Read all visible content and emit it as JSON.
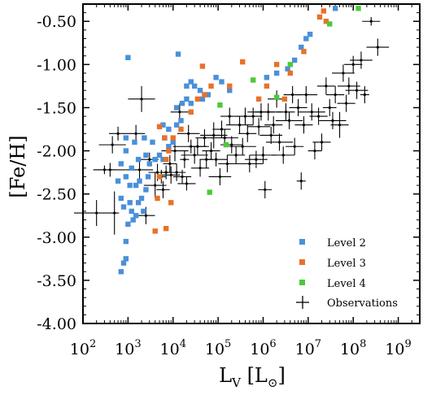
{
  "chart_data": {
    "type": "scatter",
    "title": "",
    "xlabel": "L_V [L_⊙]",
    "ylabel": "[Fe/H]",
    "xscale": "log",
    "xlim": [
      100,
      3000000000
    ],
    "ylim": [
      -4.0,
      -0.3
    ],
    "x_tick_labels": [
      "10^2",
      "10^3",
      "10^4",
      "10^5",
      "10^6",
      "10^7",
      "10^8",
      "10^9"
    ],
    "y_tick_labels": [
      "-0.50",
      "-1.00",
      "-1.50",
      "-2.00",
      "-2.50",
      "-3.00",
      "-3.50",
      "-4.00"
    ],
    "grid": false,
    "legend_position": "bottom-right",
    "colors": {
      "level2": "#4a90d9",
      "level3": "#e8712a",
      "level4": "#4cc93a",
      "observations": "#000000"
    },
    "series": [
      {
        "name": "Level 2",
        "marker": "square",
        "points": [
          [
            700,
            -3.4
          ],
          [
            800,
            -3.3
          ],
          [
            900,
            -3.25
          ],
          [
            900,
            -3.05
          ],
          [
            1000,
            -2.85
          ],
          [
            700,
            -2.55
          ],
          [
            800,
            -2.65
          ],
          [
            1100,
            -2.6
          ],
          [
            1200,
            -2.7
          ],
          [
            1300,
            -2.8
          ],
          [
            1500,
            -2.75
          ],
          [
            1700,
            -2.6
          ],
          [
            2000,
            -2.55
          ],
          [
            2200,
            -2.7
          ],
          [
            600,
            -2.35
          ],
          [
            900,
            -2.3
          ],
          [
            1100,
            -2.4
          ],
          [
            1500,
            -2.4
          ],
          [
            1800,
            -2.35
          ],
          [
            2500,
            -2.45
          ],
          [
            2800,
            -2.3
          ],
          [
            700,
            -2.15
          ],
          [
            900,
            -2.0
          ],
          [
            1200,
            -2.2
          ],
          [
            1700,
            -2.1
          ],
          [
            2500,
            -2.05
          ],
          [
            3000,
            -2.15
          ],
          [
            4000,
            -2.1
          ],
          [
            5000,
            -2.05
          ],
          [
            6000,
            -2.1
          ],
          [
            900,
            -1.85
          ],
          [
            1400,
            -1.9
          ],
          [
            2300,
            -1.85
          ],
          [
            3500,
            -1.9
          ],
          [
            6500,
            -1.85
          ],
          [
            8000,
            -1.95
          ],
          [
            10000,
            -1.9
          ],
          [
            6000,
            -1.7
          ],
          [
            8000,
            -1.75
          ],
          [
            12000,
            -1.7
          ],
          [
            15000,
            -1.65
          ],
          [
            12000,
            -1.5
          ],
          [
            16000,
            -1.45
          ],
          [
            20000,
            -1.4
          ],
          [
            25000,
            -1.45
          ],
          [
            20000,
            -1.25
          ],
          [
            25000,
            -1.2
          ],
          [
            30000,
            -1.25
          ],
          [
            40000,
            -1.3
          ],
          [
            45000,
            -1.4
          ],
          [
            60000,
            -1.35
          ],
          [
            90000,
            -1.15
          ],
          [
            120000,
            -1.2
          ],
          [
            180000,
            -1.3
          ],
          [
            1200000,
            -1.15
          ],
          [
            2000000,
            -1.1
          ],
          [
            3500000,
            -1.05
          ],
          [
            5000000,
            -0.95
          ],
          [
            7000000,
            -0.8
          ],
          [
            9000000,
            -0.7
          ],
          [
            11000000,
            -0.65
          ],
          [
            40000000,
            -0.35
          ],
          [
            1000,
            -0.92
          ],
          [
            13000,
            -0.88
          ]
        ]
      },
      {
        "name": "Level 3",
        "marker": "square",
        "points": [
          [
            4000,
            -2.93
          ],
          [
            7000,
            -2.9
          ],
          [
            4500,
            -2.55
          ],
          [
            5000,
            -2.3
          ],
          [
            9000,
            -2.6
          ],
          [
            7000,
            -2.1
          ],
          [
            5000,
            -1.72
          ],
          [
            6500,
            -1.85
          ],
          [
            8000,
            -2.0
          ],
          [
            10000,
            -1.85
          ],
          [
            15000,
            -1.75
          ],
          [
            25000,
            -1.55
          ],
          [
            35000,
            -1.4
          ],
          [
            50000,
            -1.35
          ],
          [
            45000,
            -1.02
          ],
          [
            70000,
            -1.25
          ],
          [
            180000,
            -1.25
          ],
          [
            350000,
            -0.97
          ],
          [
            800000,
            -1.4
          ],
          [
            1200000,
            -1.25
          ],
          [
            2000000,
            -1.0
          ],
          [
            3000000,
            -1.4
          ],
          [
            4000000,
            -1.1
          ],
          [
            22000000,
            -0.38
          ],
          [
            18000000,
            -0.45
          ],
          [
            25000000,
            -0.5
          ],
          [
            8000000,
            -0.85
          ]
        ]
      },
      {
        "name": "Level 4",
        "marker": "square",
        "points": [
          [
            65000,
            -2.48
          ],
          [
            150000,
            -1.93
          ],
          [
            110000,
            -1.47
          ],
          [
            600000,
            -1.18
          ],
          [
            2000000,
            -1.38
          ],
          [
            4000000,
            -1.0
          ],
          [
            30000000,
            -0.53
          ],
          [
            130000000,
            -0.35
          ]
        ]
      },
      {
        "name": "Observations",
        "marker": "errorbar",
        "points": [
          [
            200,
            -2.72,
            0.5,
            0.15
          ],
          [
            500,
            -2.72,
            0.05,
            0.25
          ],
          [
            300,
            -2.22,
            0.25,
            0.05
          ],
          [
            400,
            -2.22,
            0.35,
            0.08
          ],
          [
            450,
            -1.93,
            0.3,
            0.1
          ],
          [
            600,
            -1.8,
            0.2,
            0.08
          ],
          [
            1000,
            -0.92,
            0.05,
            0.03
          ],
          [
            1500,
            -1.8,
            0.2,
            0.1
          ],
          [
            1800,
            -2.22,
            0.3,
            0.1
          ],
          [
            2000,
            -1.4,
            0.3,
            0.15
          ],
          [
            2500,
            -2.75,
            0.2,
            0.1
          ],
          [
            3000,
            -2.1,
            0.2,
            0.08
          ],
          [
            4000,
            -2.4,
            0.25,
            0.15
          ],
          [
            4500,
            -2.25,
            0.2,
            0.1
          ],
          [
            5500,
            -2.3,
            0.1,
            0.08
          ],
          [
            6000,
            -2.45,
            0.15,
            0.1
          ],
          [
            7000,
            -2.25,
            0.1,
            0.08
          ],
          [
            8500,
            -2.15,
            0.15,
            0.1
          ],
          [
            9000,
            -2.28,
            0.2,
            0.1
          ],
          [
            11000,
            -2.0,
            0.3,
            0.12
          ],
          [
            12000,
            -2.25,
            0.2,
            0.1
          ],
          [
            14000,
            -1.55,
            0.2,
            0.1
          ],
          [
            16000,
            -2.3,
            0.2,
            0.08
          ],
          [
            18000,
            -2.1,
            0.1,
            0.1
          ],
          [
            20000,
            -2.38,
            0.2,
            0.08
          ],
          [
            22000,
            -1.8,
            0.25,
            0.1
          ],
          [
            25000,
            -1.95,
            0.4,
            0.08
          ],
          [
            30000,
            -2.05,
            0.3,
            0.1
          ],
          [
            35000,
            -1.95,
            0.2,
            0.1
          ],
          [
            40000,
            -2.2,
            0.2,
            0.1
          ],
          [
            50000,
            -1.85,
            0.2,
            0.1
          ],
          [
            55000,
            -2.1,
            0.15,
            0.1
          ],
          [
            70000,
            -2.0,
            0.2,
            0.1
          ],
          [
            80000,
            -1.82,
            0.3,
            0.15
          ],
          [
            90000,
            -2.1,
            0.25,
            0.08
          ],
          [
            110000,
            -2.3,
            0.25,
            0.1
          ],
          [
            120000,
            -1.75,
            0.2,
            0.1
          ],
          [
            140000,
            -1.85,
            0.3,
            0.1
          ],
          [
            160000,
            -2.15,
            0.2,
            0.1
          ],
          [
            180000,
            -1.6,
            0.2,
            0.1
          ],
          [
            200000,
            -1.93,
            0.25,
            0.1
          ],
          [
            250000,
            -2.05,
            0.2,
            0.1
          ],
          [
            300000,
            -1.7,
            0.3,
            0.1
          ],
          [
            350000,
            -1.95,
            0.3,
            0.1
          ],
          [
            400000,
            -1.6,
            0.2,
            0.1
          ],
          [
            450000,
            -1.8,
            0.2,
            0.1
          ],
          [
            500000,
            -2.15,
            0.3,
            0.1
          ],
          [
            600000,
            -1.6,
            0.2,
            0.1
          ],
          [
            700000,
            -2.1,
            0.25,
            0.1
          ],
          [
            800000,
            -1.72,
            0.25,
            0.1
          ],
          [
            900000,
            -1.55,
            0.3,
            0.1
          ],
          [
            1000000,
            -2.05,
            0.3,
            0.1
          ],
          [
            1100000,
            -2.45,
            0.15,
            0.1
          ],
          [
            1300000,
            -1.55,
            0.3,
            0.1
          ],
          [
            1500000,
            -1.82,
            0.25,
            0.1
          ],
          [
            1700000,
            -1.7,
            0.2,
            0.1
          ],
          [
            2000000,
            -1.4,
            0.2,
            0.1
          ],
          [
            2300000,
            -1.9,
            0.3,
            0.1
          ],
          [
            2800000,
            -2.05,
            0.25,
            0.1
          ],
          [
            3200000,
            -1.55,
            0.2,
            0.1
          ],
          [
            3800000,
            -1.65,
            0.3,
            0.1
          ],
          [
            4500000,
            -1.35,
            0.2,
            0.1
          ],
          [
            5000000,
            -1.95,
            0.2,
            0.1
          ],
          [
            6000000,
            -1.5,
            0.2,
            0.1
          ],
          [
            7000000,
            -2.35,
            0.1,
            0.1
          ],
          [
            8000000,
            -1.7,
            0.2,
            0.1
          ],
          [
            9000000,
            -1.35,
            0.25,
            0.1
          ],
          [
            12000000,
            -1.55,
            0.3,
            0.1
          ],
          [
            14000000,
            -2.0,
            0.15,
            0.1
          ],
          [
            17000000,
            -1.6,
            0.2,
            0.1
          ],
          [
            20000000,
            -1.9,
            0.2,
            0.1
          ],
          [
            25000000,
            -1.25,
            0.2,
            0.1
          ],
          [
            30000000,
            -1.5,
            0.15,
            0.1
          ],
          [
            35000000,
            -1.65,
            0.3,
            0.1
          ],
          [
            40000000,
            -1.35,
            0.2,
            0.1
          ],
          [
            50000000,
            -1.7,
            0.2,
            0.15
          ],
          [
            60000000,
            -1.1,
            0.25,
            0.1
          ],
          [
            70000000,
            -1.45,
            0.2,
            0.1
          ],
          [
            80000000,
            -1.25,
            0.25,
            0.1
          ],
          [
            100000000,
            -1.0,
            0.2,
            0.1
          ],
          [
            120000000,
            -1.3,
            0.25,
            0.1
          ],
          [
            150000000,
            -0.95,
            0.25,
            0.1
          ],
          [
            180000000,
            -1.35,
            0.1,
            0.1
          ],
          [
            250000000,
            -0.5,
            0.2,
            0.05
          ],
          [
            350000000,
            -0.8,
            0.25,
            0.1
          ]
        ]
      }
    ],
    "legend": [
      "Level 2",
      "Level 3",
      "Level 4",
      "Observations"
    ]
  }
}
